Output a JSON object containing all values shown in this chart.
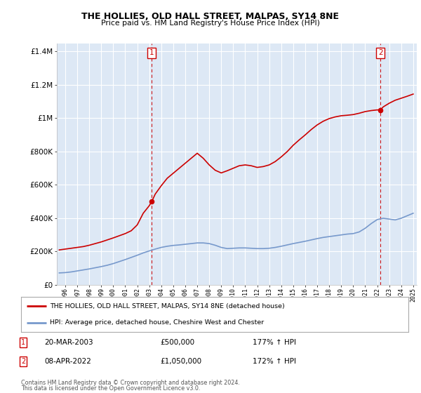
{
  "title": "THE HOLLIES, OLD HALL STREET, MALPAS, SY14 8NE",
  "subtitle": "Price paid vs. HM Land Registry's House Price Index (HPI)",
  "legend_line1": "THE HOLLIES, OLD HALL STREET, MALPAS, SY14 8NE (detached house)",
  "legend_line2": "HPI: Average price, detached house, Cheshire West and Chester",
  "annotation1": {
    "num": "1",
    "date": "20-MAR-2003",
    "price": "£500,000",
    "hpi": "177% ↑ HPI",
    "x_year": 2003.21,
    "y_val": 500000
  },
  "annotation2": {
    "num": "2",
    "date": "08-APR-2022",
    "price": "£1,050,000",
    "hpi": "172% ↑ HPI",
    "x_year": 2022.27,
    "y_val": 1050000
  },
  "footer1": "Contains HM Land Registry data © Crown copyright and database right 2024.",
  "footer2": "This data is licensed under the Open Government Licence v3.0.",
  "ylim": [
    0,
    1450000
  ],
  "xlim_start": 1995.3,
  "xlim_end": 2025.3,
  "red_color": "#cc0000",
  "blue_color": "#7799cc",
  "dashed_color": "#cc0000",
  "background_color": "#ffffff",
  "plot_bg_color": "#dde8f5",
  "grid_color": "#ffffff",
  "hpi_years": [
    1995.5,
    1996.0,
    1996.5,
    1997.0,
    1997.5,
    1998.0,
    1998.5,
    1999.0,
    1999.5,
    2000.0,
    2000.5,
    2001.0,
    2001.5,
    2002.0,
    2002.5,
    2003.0,
    2003.5,
    2004.0,
    2004.5,
    2005.0,
    2005.5,
    2006.0,
    2006.5,
    2007.0,
    2007.5,
    2008.0,
    2008.5,
    2009.0,
    2009.5,
    2010.0,
    2010.5,
    2011.0,
    2011.5,
    2012.0,
    2012.5,
    2013.0,
    2013.5,
    2014.0,
    2014.5,
    2015.0,
    2015.5,
    2016.0,
    2016.5,
    2017.0,
    2017.5,
    2018.0,
    2018.5,
    2019.0,
    2019.5,
    2020.0,
    2020.5,
    2021.0,
    2021.5,
    2022.0,
    2022.5,
    2023.0,
    2023.5,
    2024.0,
    2024.5,
    2025.0
  ],
  "hpi_values": [
    72000,
    74000,
    78000,
    84000,
    90000,
    96000,
    103000,
    110000,
    118000,
    128000,
    140000,
    152000,
    165000,
    178000,
    192000,
    204000,
    215000,
    225000,
    232000,
    237000,
    240000,
    244000,
    248000,
    252000,
    252000,
    248000,
    238000,
    225000,
    218000,
    220000,
    222000,
    222000,
    220000,
    218000,
    218000,
    220000,
    225000,
    232000,
    240000,
    248000,
    255000,
    262000,
    270000,
    278000,
    285000,
    290000,
    295000,
    300000,
    305000,
    308000,
    318000,
    340000,
    368000,
    392000,
    400000,
    395000,
    390000,
    400000,
    415000,
    430000
  ],
  "prop_years": [
    1995.5,
    1996.0,
    1996.5,
    1997.0,
    1997.5,
    1998.0,
    1998.5,
    1999.0,
    1999.5,
    2000.0,
    2000.5,
    2001.0,
    2001.5,
    2002.0,
    2002.5,
    2003.0,
    2003.21,
    2003.5,
    2004.0,
    2004.5,
    2005.0,
    2005.5,
    2006.0,
    2006.5,
    2007.0,
    2007.5,
    2008.0,
    2008.5,
    2009.0,
    2009.5,
    2010.0,
    2010.5,
    2011.0,
    2011.5,
    2012.0,
    2012.5,
    2013.0,
    2013.5,
    2014.0,
    2014.5,
    2015.0,
    2015.5,
    2016.0,
    2016.5,
    2017.0,
    2017.5,
    2018.0,
    2018.5,
    2019.0,
    2019.5,
    2020.0,
    2020.5,
    2021.0,
    2021.5,
    2022.0,
    2022.27,
    2022.5,
    2023.0,
    2023.5,
    2024.0,
    2024.5,
    2025.0
  ],
  "prop_values": [
    210000,
    215000,
    220000,
    225000,
    230000,
    238000,
    248000,
    258000,
    270000,
    282000,
    295000,
    308000,
    325000,
    360000,
    430000,
    475000,
    500000,
    545000,
    595000,
    640000,
    670000,
    700000,
    730000,
    760000,
    790000,
    760000,
    720000,
    688000,
    672000,
    685000,
    700000,
    715000,
    720000,
    715000,
    705000,
    710000,
    720000,
    740000,
    768000,
    800000,
    838000,
    870000,
    900000,
    932000,
    960000,
    982000,
    998000,
    1008000,
    1015000,
    1018000,
    1022000,
    1030000,
    1040000,
    1046000,
    1050000,
    1050000,
    1068000,
    1090000,
    1108000,
    1120000,
    1132000,
    1145000
  ]
}
